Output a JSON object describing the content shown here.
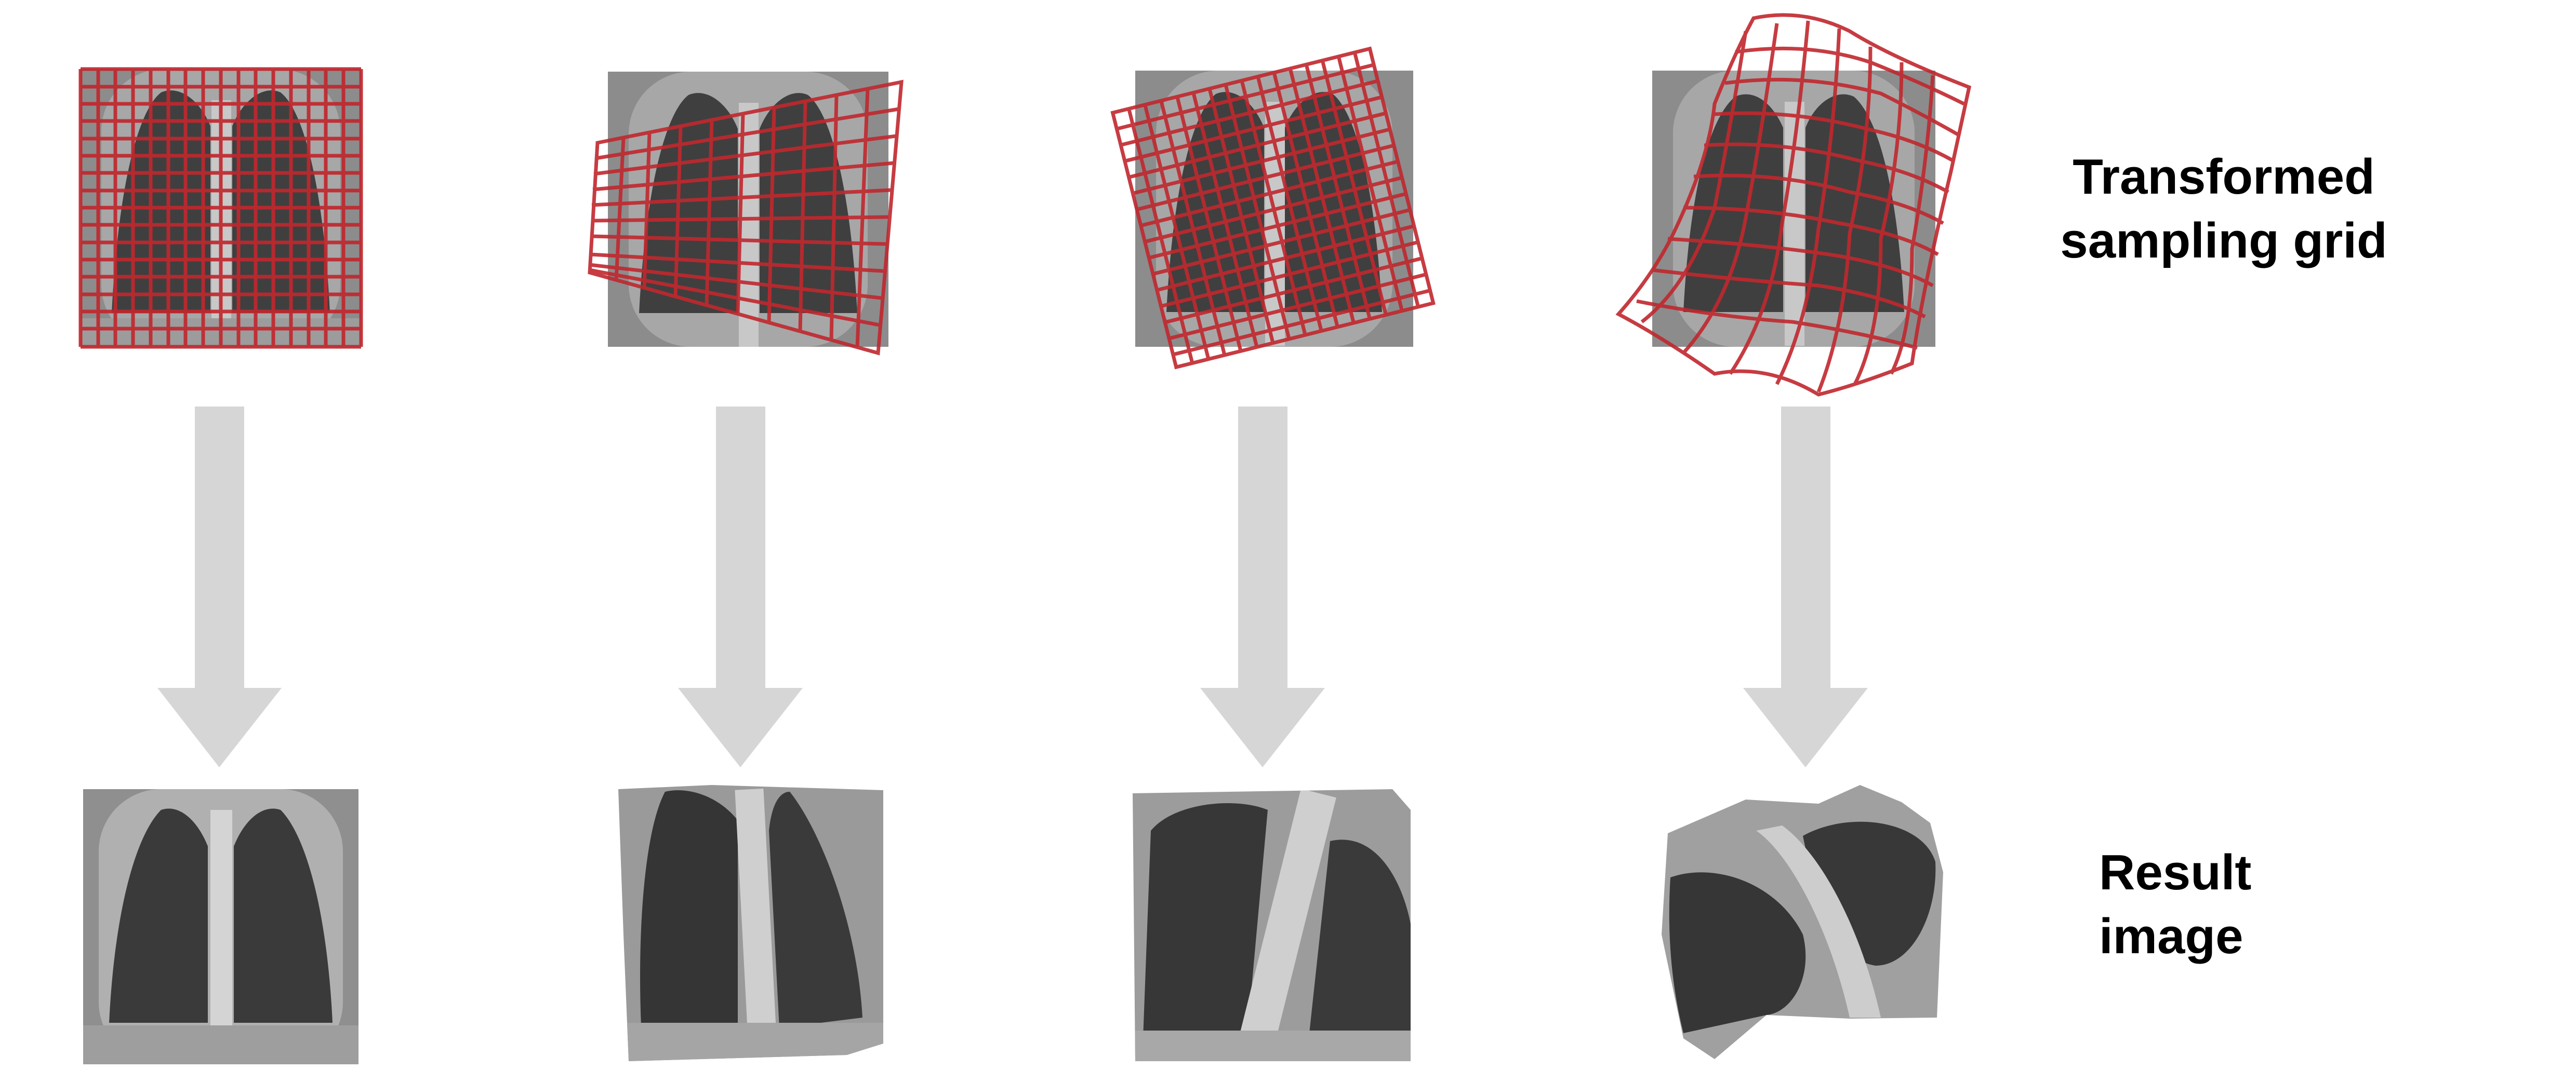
{
  "labels": {
    "top_line1": "Transformed",
    "top_line2": "sampling grid",
    "bottom_line1": "Result",
    "bottom_line2": "image"
  },
  "colors": {
    "grid": "#c0282e",
    "arrow": "#d6d6d6",
    "ct_background": "#8c8c8c",
    "ct_tissue": "#a9a9a9",
    "ct_lung": "#3e3e3e",
    "ct_bone": "#d2d2d2"
  },
  "columns": [
    {
      "transform": "identity"
    },
    {
      "transform": "perspective"
    },
    {
      "transform": "rotation"
    },
    {
      "transform": "elastic"
    }
  ]
}
